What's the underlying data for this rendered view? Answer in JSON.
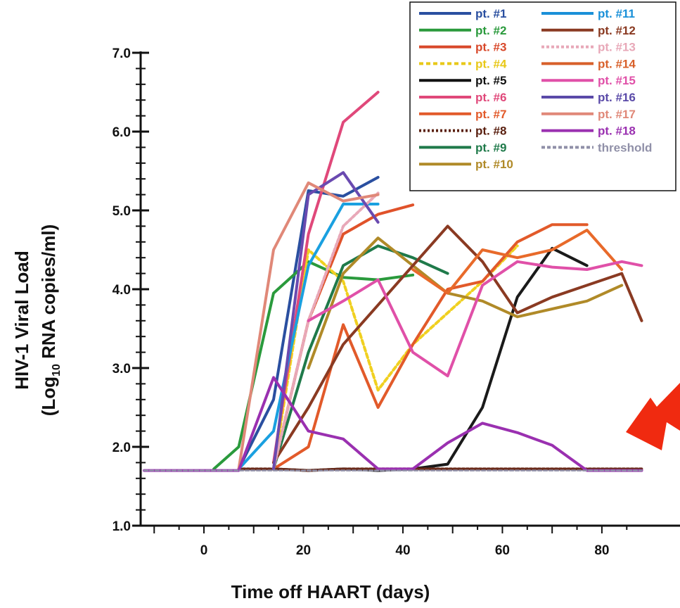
{
  "chart_data": {
    "type": "line",
    "xlabel": "Time off HAART (days)",
    "ylabel_line1": "HIV-1 Viral Load",
    "ylabel_line2_pre": "(Log",
    "ylabel_line2_sub": "10",
    "ylabel_line2_post": " RNA copies/ml)",
    "xlim": [
      -12,
      88
    ],
    "ylim": [
      1.0,
      7.0
    ],
    "x_ticks": [
      0,
      20,
      40,
      60,
      80
    ],
    "x_tick_labels": [
      "0",
      "20",
      "40",
      "60",
      "80"
    ],
    "y_ticks": [
      1,
      2,
      3,
      4,
      5,
      6,
      7
    ],
    "y_tick_labels": [
      "1.0",
      "2.0",
      "3.0",
      "4.0",
      "5.0",
      "6.0",
      "7.0"
    ],
    "legend_position": "top-right",
    "series": [
      {
        "name": "pt. #1",
        "color": "#2a4fa0",
        "dash": "",
        "points": [
          [
            7,
            1.72
          ],
          [
            14,
            2.6
          ],
          [
            21,
            5.25
          ],
          [
            28,
            5.18
          ],
          [
            35,
            5.42
          ]
        ]
      },
      {
        "name": "pt. #2",
        "color": "#2a9a3c",
        "dash": "",
        "points": [
          [
            2,
            1.72
          ],
          [
            7,
            2.0
          ],
          [
            14,
            3.95
          ],
          [
            21,
            4.35
          ],
          [
            28,
            4.15
          ],
          [
            35,
            4.12
          ],
          [
            42,
            4.18
          ]
        ]
      },
      {
        "name": "pt. #3",
        "color": "#e0522a",
        "dash": "",
        "points": [
          [
            14,
            1.72
          ],
          [
            21,
            3.6
          ],
          [
            28,
            4.7
          ],
          [
            35,
            4.95
          ],
          [
            42,
            5.07
          ]
        ]
      },
      {
        "name": "pt. #4",
        "color": "#f0d020",
        "dash": "6,4",
        "points": [
          [
            14,
            1.72
          ],
          [
            21,
            4.5
          ],
          [
            28,
            4.1
          ],
          [
            35,
            2.72
          ],
          [
            42,
            3.3
          ],
          [
            49,
            3.7
          ],
          [
            56,
            4.1
          ],
          [
            63,
            4.55
          ]
        ]
      },
      {
        "name": "pt. #5",
        "color": "#1a1a1a",
        "dash": "",
        "points": [
          [
            14,
            1.72
          ],
          [
            21,
            1.7
          ],
          [
            28,
            1.72
          ],
          [
            35,
            1.7
          ],
          [
            42,
            1.72
          ],
          [
            49,
            1.78
          ],
          [
            56,
            2.5
          ],
          [
            63,
            3.9
          ],
          [
            70,
            4.52
          ],
          [
            77,
            4.3
          ]
        ]
      },
      {
        "name": "pt. #6",
        "color": "#e0487a",
        "dash": "",
        "points": [
          [
            14,
            1.8
          ],
          [
            21,
            4.7
          ],
          [
            28,
            6.12
          ],
          [
            35,
            6.5
          ]
        ]
      },
      {
        "name": "pt. #7",
        "color": "#e25a2a",
        "dash": "",
        "points": [
          [
            14,
            1.72
          ],
          [
            21,
            2.0
          ],
          [
            28,
            3.55
          ],
          [
            35,
            2.5
          ],
          [
            42,
            3.3
          ],
          [
            49,
            4.0
          ],
          [
            56,
            4.1
          ],
          [
            63,
            4.6
          ],
          [
            70,
            4.82
          ],
          [
            77,
            4.82
          ]
        ]
      },
      {
        "name": "pt. #8",
        "color": "#6a2a1a",
        "dash": "3,3",
        "points": [
          [
            7,
            1.72
          ],
          [
            14,
            1.72
          ],
          [
            21,
            1.7
          ],
          [
            28,
            1.72
          ],
          [
            35,
            1.72
          ],
          [
            42,
            1.72
          ],
          [
            49,
            1.72
          ],
          [
            56,
            1.72
          ],
          [
            63,
            1.72
          ],
          [
            70,
            1.72
          ],
          [
            77,
            1.72
          ],
          [
            84,
            1.72
          ],
          [
            88,
            1.72
          ]
        ]
      },
      {
        "name": "pt. #9",
        "color": "#1f7a4a",
        "dash": "",
        "points": [
          [
            14,
            1.72
          ],
          [
            21,
            3.2
          ],
          [
            28,
            4.3
          ],
          [
            35,
            4.55
          ],
          [
            42,
            4.4
          ],
          [
            49,
            4.2
          ]
        ]
      },
      {
        "name": "pt. #10",
        "color": "#b08a28",
        "dash": "",
        "points": [
          [
            21,
            3.0
          ],
          [
            28,
            4.2
          ],
          [
            35,
            4.65
          ],
          [
            42,
            4.3
          ],
          [
            49,
            3.95
          ],
          [
            56,
            3.85
          ],
          [
            63,
            3.65
          ],
          [
            70,
            3.75
          ],
          [
            77,
            3.85
          ],
          [
            84,
            4.05
          ]
        ]
      },
      {
        "name": "pt. #11",
        "color": "#1aa0e0",
        "dash": "",
        "points": [
          [
            7,
            1.72
          ],
          [
            14,
            2.2
          ],
          [
            21,
            4.3
          ],
          [
            28,
            5.08
          ],
          [
            35,
            5.08
          ]
        ]
      },
      {
        "name": "pt. #12",
        "color": "#8a3a22",
        "dash": "",
        "points": [
          [
            14,
            1.8
          ],
          [
            21,
            2.5
          ],
          [
            28,
            3.3
          ],
          [
            35,
            3.8
          ],
          [
            42,
            4.3
          ],
          [
            49,
            4.8
          ],
          [
            56,
            4.35
          ],
          [
            63,
            3.7
          ],
          [
            70,
            3.9
          ],
          [
            77,
            4.05
          ],
          [
            84,
            4.2
          ],
          [
            88,
            3.6
          ]
        ]
      },
      {
        "name": "pt. #13",
        "color": "#e8a8b8",
        "dash": "4,3",
        "points": [
          [
            14,
            1.72
          ],
          [
            21,
            3.6
          ],
          [
            28,
            4.8
          ],
          [
            35,
            5.22
          ]
        ]
      },
      {
        "name": "pt. #14",
        "color": "#e86a2a",
        "dash": "",
        "points": [
          [
            42,
            4.25
          ],
          [
            49,
            3.95
          ],
          [
            56,
            4.5
          ],
          [
            63,
            4.4
          ],
          [
            70,
            4.5
          ],
          [
            77,
            4.75
          ],
          [
            84,
            4.25
          ]
        ]
      },
      {
        "name": "pt. #15",
        "color": "#e050a8",
        "dash": "",
        "points": [
          [
            21,
            3.6
          ],
          [
            28,
            3.85
          ],
          [
            35,
            4.12
          ],
          [
            42,
            3.2
          ],
          [
            49,
            2.9
          ],
          [
            56,
            4.05
          ],
          [
            63,
            4.35
          ],
          [
            70,
            4.28
          ],
          [
            77,
            4.25
          ],
          [
            84,
            4.35
          ],
          [
            88,
            4.3
          ]
        ]
      },
      {
        "name": "pt. #16",
        "color": "#6a4ab0",
        "dash": "",
        "points": [
          [
            14,
            1.72
          ],
          [
            21,
            5.2
          ],
          [
            28,
            5.48
          ],
          [
            35,
            4.85
          ]
        ]
      },
      {
        "name": "pt. #17",
        "color": "#e08878",
        "dash": "",
        "points": [
          [
            7,
            1.72
          ],
          [
            14,
            4.5
          ],
          [
            21,
            5.35
          ],
          [
            28,
            5.12
          ],
          [
            35,
            5.2
          ]
        ]
      },
      {
        "name": "pt. #18",
        "color": "#9a30b0",
        "dash": "",
        "points": [
          [
            -12,
            1.7
          ],
          [
            7,
            1.7
          ],
          [
            14,
            2.88
          ],
          [
            21,
            2.2
          ],
          [
            28,
            2.1
          ],
          [
            35,
            1.72
          ],
          [
            42,
            1.72
          ],
          [
            49,
            2.05
          ],
          [
            56,
            2.3
          ],
          [
            63,
            2.18
          ],
          [
            70,
            2.02
          ],
          [
            77,
            1.7
          ],
          [
            88,
            1.7
          ]
        ]
      },
      {
        "name": "threshold",
        "color": "#9090a8",
        "dash": "5,3",
        "points": [
          [
            -12,
            1.7
          ],
          [
            88,
            1.7
          ]
        ]
      }
    ],
    "legend_colors": {
      "pt. #1": "#2a4fa0",
      "pt. #2": "#2a9a3c",
      "pt. #3": "#d8482a",
      "pt. #4": "#e8c818",
      "pt. #5": "#111111",
      "pt. #6": "#e0487a",
      "pt. #7": "#e25a2a",
      "pt. #8": "#5a2010",
      "pt. #9": "#1f7a4a",
      "pt. #10": "#b08a28",
      "pt. #11": "#1a90d8",
      "pt. #12": "#8a3a22",
      "pt. #13": "#e8a8b8",
      "pt. #14": "#d8602a",
      "pt. #15": "#e050a8",
      "pt. #16": "#5a4aa8",
      "pt. #17": "#e08878",
      "pt. #18": "#9a30b0",
      "threshold": "#9090a8"
    },
    "annotation": {
      "type": "arrow",
      "color": "#f02a10"
    }
  }
}
